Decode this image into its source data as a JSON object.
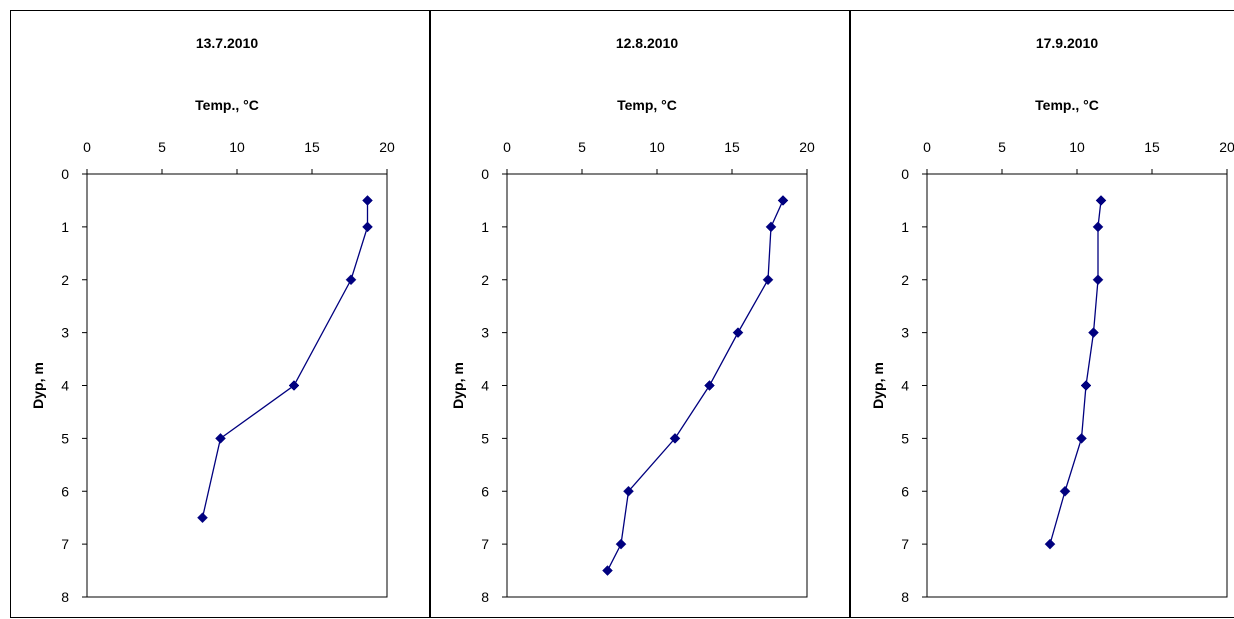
{
  "colors": {
    "series": "#00007f",
    "axis": "#000000"
  },
  "chart_data": [
    {
      "type": "line",
      "title": "13.7.2010",
      "xlabel": "Temp., °C",
      "ylabel": "Dyp, m",
      "xlim": [
        0,
        20
      ],
      "ylim": [
        0,
        8
      ],
      "y_inverted": true,
      "x_axis_position": "top",
      "xticks": [
        0,
        5,
        10,
        15,
        20
      ],
      "yticks": [
        0,
        1,
        2,
        3,
        4,
        5,
        6,
        7,
        8
      ],
      "grid": false,
      "series": [
        {
          "x": [
            18.7,
            18.7,
            17.6,
            13.8,
            8.9,
            7.7
          ],
          "y": [
            0.5,
            1,
            2,
            4,
            5,
            6.5
          ]
        }
      ]
    },
    {
      "type": "line",
      "title": "12.8.2010",
      "xlabel": "Temp, °C",
      "ylabel": "Dyp, m",
      "xlim": [
        0,
        20
      ],
      "ylim": [
        0,
        8
      ],
      "y_inverted": true,
      "x_axis_position": "top",
      "xticks": [
        0,
        5,
        10,
        15,
        20
      ],
      "yticks": [
        0,
        1,
        2,
        3,
        4,
        5,
        6,
        7,
        8
      ],
      "grid": false,
      "series": [
        {
          "x": [
            18.4,
            17.6,
            17.4,
            15.4,
            13.5,
            11.2,
            8.1,
            7.6,
            6.7
          ],
          "y": [
            0.5,
            1,
            2,
            3,
            4,
            5,
            6,
            7,
            7.5
          ]
        }
      ]
    },
    {
      "type": "line",
      "title": "17.9.2010",
      "xlabel": "Temp., °C",
      "ylabel": "Dyp, m",
      "xlim": [
        0,
        20
      ],
      "ylim": [
        0,
        8
      ],
      "y_inverted": true,
      "x_axis_position": "top",
      "xticks": [
        0,
        5,
        10,
        15,
        20
      ],
      "yticks": [
        0,
        1,
        2,
        3,
        4,
        5,
        6,
        7,
        8
      ],
      "grid": false,
      "series": [
        {
          "x": [
            11.6,
            11.4,
            11.4,
            11.1,
            10.6,
            10.3,
            9.2,
            8.2
          ],
          "y": [
            0.5,
            1,
            2,
            3,
            4,
            5,
            6,
            7
          ]
        }
      ]
    }
  ]
}
